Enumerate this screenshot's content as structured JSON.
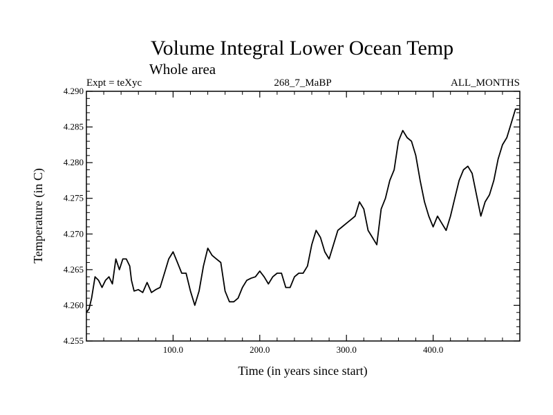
{
  "chart_data": {
    "type": "line",
    "title": "Volume Integral Lower Ocean Temp",
    "subtitle": "Whole area",
    "left_label": "Expt = teXyc",
    "center_label": "268_7_MaBP",
    "right_label": "ALL_MONTHS",
    "xlabel": "Time (in years since start)",
    "ylabel": "Temperature (in C)",
    "xlim": [
      0,
      500
    ],
    "ylim": [
      4.255,
      4.29
    ],
    "x_ticks": [
      100,
      200,
      300,
      400
    ],
    "x_tick_labels": [
      "100.0",
      "200.0",
      "300.0",
      "400.0"
    ],
    "y_ticks": [
      4.255,
      4.26,
      4.265,
      4.27,
      4.275,
      4.28,
      4.285,
      4.29
    ],
    "y_tick_labels": [
      "4.255",
      "4.260",
      "4.265",
      "4.270",
      "4.275",
      "4.280",
      "4.285",
      "4.290"
    ],
    "grid": false,
    "line_color": "#000000",
    "series": [
      {
        "x": [
          0,
          3,
          6,
          10,
          14,
          18,
          22,
          26,
          30,
          34,
          38,
          42,
          46,
          50,
          52,
          55,
          60,
          65,
          70,
          75,
          80,
          85,
          90,
          95,
          100,
          105,
          110,
          115,
          120,
          125,
          130,
          135,
          140,
          145,
          150,
          155,
          160,
          165,
          170,
          175,
          180,
          185,
          190,
          195,
          200,
          205,
          210,
          215,
          220,
          225,
          230,
          235,
          240,
          245,
          250,
          255,
          260,
          265,
          270,
          275,
          280,
          285,
          290,
          295,
          300,
          305,
          310,
          315,
          320,
          325,
          330,
          335,
          340,
          345,
          350,
          355,
          360,
          365,
          370,
          375,
          380,
          385,
          390,
          395,
          400,
          405,
          410,
          415,
          420,
          425,
          430,
          435,
          440,
          445,
          450,
          455,
          460,
          465,
          470,
          475,
          480,
          485,
          490,
          495,
          499
        ],
        "y": [
          4.259,
          4.2595,
          4.261,
          4.264,
          4.2635,
          4.2625,
          4.2635,
          4.264,
          4.263,
          4.2665,
          4.265,
          4.2665,
          4.2665,
          4.2655,
          4.2635,
          4.262,
          4.2622,
          4.2618,
          4.2632,
          4.2618,
          4.2622,
          4.2625,
          4.2645,
          4.2665,
          4.2675,
          4.266,
          4.2645,
          4.2645,
          4.262,
          4.26,
          4.262,
          4.2655,
          4.268,
          4.267,
          4.2665,
          4.266,
          4.262,
          4.2605,
          4.2605,
          4.261,
          4.2625,
          4.2635,
          4.2638,
          4.264,
          4.2648,
          4.264,
          4.263,
          4.264,
          4.2645,
          4.2645,
          4.2625,
          4.2625,
          4.264,
          4.2645,
          4.2645,
          4.2655,
          4.2685,
          4.2705,
          4.2695,
          4.2675,
          4.2665,
          4.2685,
          4.2705,
          4.271,
          4.2715,
          4.272,
          4.2725,
          4.2745,
          4.2735,
          4.2705,
          4.2695,
          4.2685,
          4.2735,
          4.275,
          4.2775,
          4.279,
          4.283,
          4.2845,
          4.2835,
          4.283,
          4.281,
          4.2775,
          4.2745,
          4.2725,
          4.271,
          4.2725,
          4.2715,
          4.2705,
          4.2725,
          4.275,
          4.2775,
          4.279,
          4.2795,
          4.2785,
          4.2755,
          4.2725,
          4.2745,
          4.2755,
          4.2775,
          4.2805,
          4.2825,
          4.2835,
          4.2855,
          4.2875,
          4.2875
        ]
      }
    ]
  }
}
